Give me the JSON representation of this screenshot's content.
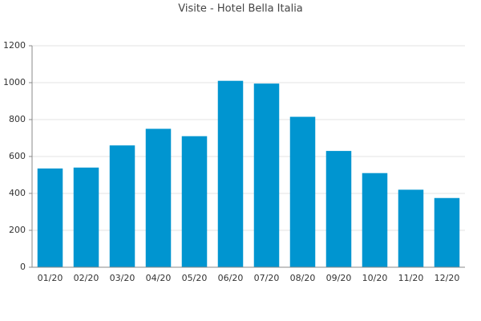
{
  "chart_data": {
    "type": "bar",
    "title": "Visite - Hotel Bella Italia",
    "categories": [
      "01/20",
      "02/20",
      "03/20",
      "04/20",
      "05/20",
      "06/20",
      "07/20",
      "08/20",
      "09/20",
      "10/20",
      "11/20",
      "12/20"
    ],
    "values": [
      535,
      540,
      660,
      750,
      710,
      1010,
      995,
      815,
      630,
      510,
      420,
      375
    ],
    "color": "#0095d0",
    "ylim": [
      0,
      1200
    ],
    "yticks": [
      0,
      200,
      400,
      600,
      800,
      1000,
      1200
    ],
    "grid": true
  }
}
